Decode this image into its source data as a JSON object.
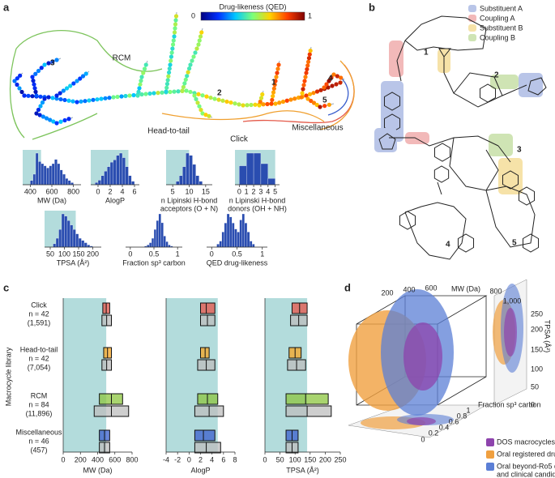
{
  "panels": {
    "a": "a",
    "b": "b",
    "c": "c",
    "d": "d"
  },
  "tree": {
    "colorbar_title": "Drug-likeness (QED)",
    "colorbar_ticks": [
      0,
      1
    ],
    "colormap": [
      "#00007f",
      "#0030ff",
      "#00c8ff",
      "#7dff7a",
      "#ffd200",
      "#ff4000",
      "#7f0000"
    ],
    "regions": [
      {
        "label": "RCM",
        "color": "#7dc45c"
      },
      {
        "label": "Head-to-tail",
        "color": "#f0a030"
      },
      {
        "label": "Click",
        "color": "#e45a4a"
      },
      {
        "label": "Miscellaneous",
        "color": "#3a5fcd"
      }
    ],
    "compound_labels": [
      "3",
      "2",
      "1",
      "4",
      "5"
    ]
  },
  "structures": {
    "legend": [
      {
        "label": "Substituent A",
        "color": "#b9c5e8"
      },
      {
        "label": "Coupling A",
        "color": "#f2b9b9"
      },
      {
        "label": "Substituent B",
        "color": "#f6e2a8"
      },
      {
        "label": "Coupling B",
        "color": "#cfe4b4"
      }
    ],
    "labels": [
      "1",
      "2",
      "3",
      "4",
      "5"
    ]
  },
  "panel_c": {
    "ylabel": "Macrocycle library",
    "libraries": [
      {
        "name": "Click",
        "n": "n = 42",
        "count": "(1,591)",
        "color": "#e8544a"
      },
      {
        "name": "Head-to-tail",
        "n": "n = 42",
        "count": "(7,054)",
        "color": "#f5a623"
      },
      {
        "name": "RCM",
        "n": "n = 84",
        "count": "(11,896)",
        "color": "#8cc63f"
      },
      {
        "name": "Miscellaneous",
        "n": "n = 46",
        "count": "(457)",
        "color": "#3a5fcd"
      }
    ]
  },
  "panel_d": {
    "mw_label": "MW (Da)",
    "mw_ticks": [
      200,
      400,
      600,
      800,
      {
        "value": 1000,
        "label": "1,000"
      }
    ],
    "tpsa_label": "TPSA (Å²)",
    "tpsa_ticks": [
      250,
      200,
      150,
      100,
      50,
      0
    ],
    "sp3_label": "Fraction sp³ carbon",
    "sp3_ticks": [
      1,
      0.8,
      0.6,
      0.4,
      0.2,
      0
    ],
    "legend": [
      {
        "lines": [
          "DOS macrocycles"
        ],
        "color": "#8e44ad"
      },
      {
        "lines": [
          "Oral registered drugs"
        ],
        "color": "#f0a040"
      },
      {
        "lines": [
          "Oral beyond-Ro5 drugs",
          "and clinical candidates"
        ],
        "color": "#5b7fd6"
      }
    ]
  },
  "chart_data": [
    {
      "type": "histogram",
      "xlabel": [
        "MW (Da)"
      ],
      "xlim": [
        330,
        870
      ],
      "xticks": [
        400,
        600,
        800
      ],
      "shade": [
        330,
        500
      ],
      "color": "#2a4db0",
      "bins": [
        400,
        425,
        450,
        475,
        500,
        525,
        550,
        575,
        600,
        625,
        650,
        675,
        700,
        725,
        750,
        775,
        800
      ],
      "counts": [
        4,
        10,
        30,
        22,
        20,
        18,
        16,
        18,
        20,
        24,
        20,
        14,
        10,
        6,
        4,
        2
      ]
    },
    {
      "type": "histogram",
      "xlabel": [
        "AlogP"
      ],
      "xlim": [
        -1.2,
        6.8
      ],
      "xticks": [
        0,
        2,
        4,
        6
      ],
      "shade": [
        -1.2,
        5
      ],
      "color": "#2a4db0",
      "bins": [
        -0.5,
        0,
        0.5,
        1,
        1.5,
        2,
        2.5,
        3,
        3.5,
        4,
        4.5,
        5,
        5.5,
        6
      ],
      "counts": [
        2,
        4,
        8,
        12,
        16,
        20,
        22,
        26,
        28,
        24,
        16,
        8,
        3
      ]
    },
    {
      "type": "histogram",
      "xlabel": [
        "n Lipinski H-bond",
        "acceptors (O + N)"
      ],
      "xlim": [
        3,
        17
      ],
      "xticks": [
        5,
        10,
        15
      ],
      "shade": [
        3,
        10
      ],
      "color": "#2a4db0",
      "bins": [
        6,
        7,
        8,
        9,
        10,
        11,
        12,
        13,
        14
      ],
      "counts": [
        3,
        8,
        16,
        28,
        26,
        18,
        8,
        3
      ]
    },
    {
      "type": "histogram",
      "xlabel": [
        "n Lipinski H-bond",
        "donors (OH + NH)"
      ],
      "xlim": [
        -0.6,
        5.6
      ],
      "xticks": [
        0,
        1,
        2,
        3,
        4,
        5
      ],
      "shade": [
        -0.6,
        5
      ],
      "color": "#2a4db0",
      "bins": [
        0,
        1,
        2,
        3,
        4,
        5
      ],
      "counts": [
        18,
        30,
        30,
        20,
        6
      ]
    },
    {
      "type": "histogram",
      "xlabel": [
        "TPSA (Å²)"
      ],
      "xlim": [
        30,
        230
      ],
      "xticks": [
        50,
        100,
        150,
        200
      ],
      "shade": [
        30,
        140
      ],
      "color": "#2a4db0",
      "bins": [
        60,
        70,
        80,
        90,
        100,
        110,
        120,
        130,
        140,
        150,
        160,
        170,
        180,
        190,
        200
      ],
      "counts": [
        3,
        8,
        16,
        30,
        28,
        24,
        20,
        16,
        12,
        8,
        6,
        4,
        2,
        1
      ]
    },
    {
      "type": "histogram",
      "xlabel": [
        "Fraction sp³ carbon"
      ],
      "xlim": [
        -0.1,
        1.1
      ],
      "xticks": [
        0,
        0.5,
        1
      ],
      "color": "#2a4db0",
      "bins": [
        0.3,
        0.35,
        0.4,
        0.45,
        0.5,
        0.55,
        0.6,
        0.65,
        0.7,
        0.75,
        0.8,
        0.85,
        0.9
      ],
      "counts": [
        1,
        2,
        4,
        8,
        16,
        24,
        30,
        22,
        10,
        5,
        2,
        1
      ]
    },
    {
      "type": "histogram",
      "xlabel": [
        "QED drug-likeness"
      ],
      "xlim": [
        -0.1,
        1.1
      ],
      "xticks": [
        0,
        0.5,
        1
      ],
      "color": "#2a4db0",
      "bins": [
        0.1,
        0.15,
        0.2,
        0.25,
        0.3,
        0.35,
        0.4,
        0.45,
        0.5,
        0.55,
        0.6,
        0.65,
        0.7,
        0.75,
        0.8,
        0.85
      ],
      "counts": [
        2,
        4,
        10,
        16,
        22,
        20,
        16,
        12,
        10,
        18,
        22,
        16,
        10,
        4,
        2
      ]
    },
    {
      "type": "box",
      "xlabel": "MW (Da)",
      "xlim": [
        0,
        800
      ],
      "xticks": [
        0,
        200,
        400,
        600,
        800
      ],
      "shade": [
        0,
        500
      ],
      "reference_color": "#bdbdbd",
      "boxes": [
        [
          [
            460,
            500,
            540
          ],
          [
            450,
            505,
            560
          ]
        ],
        [
          [
            470,
            515,
            560
          ],
          [
            450,
            505,
            560
          ]
        ],
        [
          [
            420,
            560,
            690
          ],
          [
            360,
            560,
            760
          ]
        ],
        [
          [
            420,
            480,
            540
          ],
          [
            420,
            480,
            540
          ]
        ]
      ]
    },
    {
      "type": "box",
      "xlabel": "AlogP",
      "xlim": [
        -4,
        8
      ],
      "xticks": [
        -4,
        -2,
        0,
        2,
        4,
        6,
        8
      ],
      "shade": [
        -4,
        5
      ],
      "reference_color": "#bdbdbd",
      "boxes": [
        [
          [
            2,
            3,
            4.5
          ],
          [
            2,
            3.2,
            4.5
          ]
        ],
        [
          [
            2,
            2.8,
            3.5
          ],
          [
            1.5,
            3,
            4.5
          ]
        ],
        [
          [
            1.5,
            3.2,
            5
          ],
          [
            1,
            3.5,
            6
          ]
        ],
        [
          [
            1,
            2.5,
            4.5
          ],
          [
            1,
            3,
            5.5
          ]
        ]
      ]
    },
    {
      "type": "box",
      "xlabel": "TPSA (Å²)",
      "xlim": [
        0,
        250
      ],
      "xticks": [
        0,
        50,
        100,
        150,
        200,
        250
      ],
      "shade": [
        0,
        140
      ],
      "reference_color": "#bdbdbd",
      "boxes": [
        [
          [
            90,
            115,
            140
          ],
          [
            85,
            112,
            140
          ]
        ],
        [
          [
            80,
            100,
            120
          ],
          [
            75,
            105,
            135
          ]
        ],
        [
          [
            70,
            135,
            210
          ],
          [
            70,
            140,
            220
          ]
        ],
        [
          [
            70,
            90,
            110
          ],
          [
            70,
            90,
            110
          ]
        ]
      ]
    }
  ]
}
